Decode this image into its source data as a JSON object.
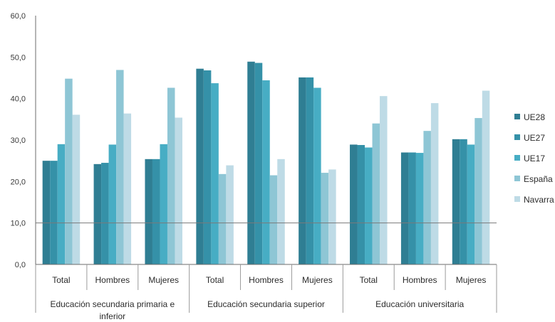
{
  "chart_data": {
    "type": "bar",
    "ylim": [
      0,
      60
    ],
    "yticks": [
      "0,0",
      "10,0",
      "20,0",
      "30,0",
      "40,0",
      "50,0",
      "60,0"
    ],
    "categories": [
      "Total",
      "Hombres",
      "Mujeres",
      "Total",
      "Hombres",
      "Mujeres",
      "Total",
      "Hombres",
      "Mujeres"
    ],
    "groups": [
      {
        "label": "Educación secundaria primaria e",
        "label2": "inferior"
      },
      {
        "label": "Educación secundaria superior",
        "label2": ""
      },
      {
        "label": "Educación universitaria",
        "label2": ""
      }
    ],
    "series": [
      {
        "name": "UE28",
        "color": "#2f7e93",
        "values": [
          25.0,
          24.2,
          25.4,
          47.2,
          48.9,
          45.1,
          28.9,
          27.0,
          30.2
        ]
      },
      {
        "name": "UE27",
        "color": "#3591a8",
        "values": [
          25.0,
          24.5,
          25.4,
          46.8,
          48.6,
          45.1,
          28.8,
          27.0,
          30.2
        ]
      },
      {
        "name": "UE17",
        "color": "#47adc4",
        "values": [
          29.0,
          28.9,
          29.0,
          43.7,
          44.4,
          42.6,
          28.2,
          26.9,
          28.9
        ]
      },
      {
        "name": "España",
        "color": "#8ec6d5",
        "values": [
          44.8,
          46.9,
          42.6,
          21.8,
          21.5,
          22.1,
          34.0,
          32.2,
          35.3
        ]
      },
      {
        "name": "Navarra",
        "color": "#bedbe6",
        "values": [
          36.1,
          36.4,
          35.4,
          23.9,
          25.4,
          22.9,
          40.6,
          38.9,
          41.9
        ]
      }
    ]
  }
}
